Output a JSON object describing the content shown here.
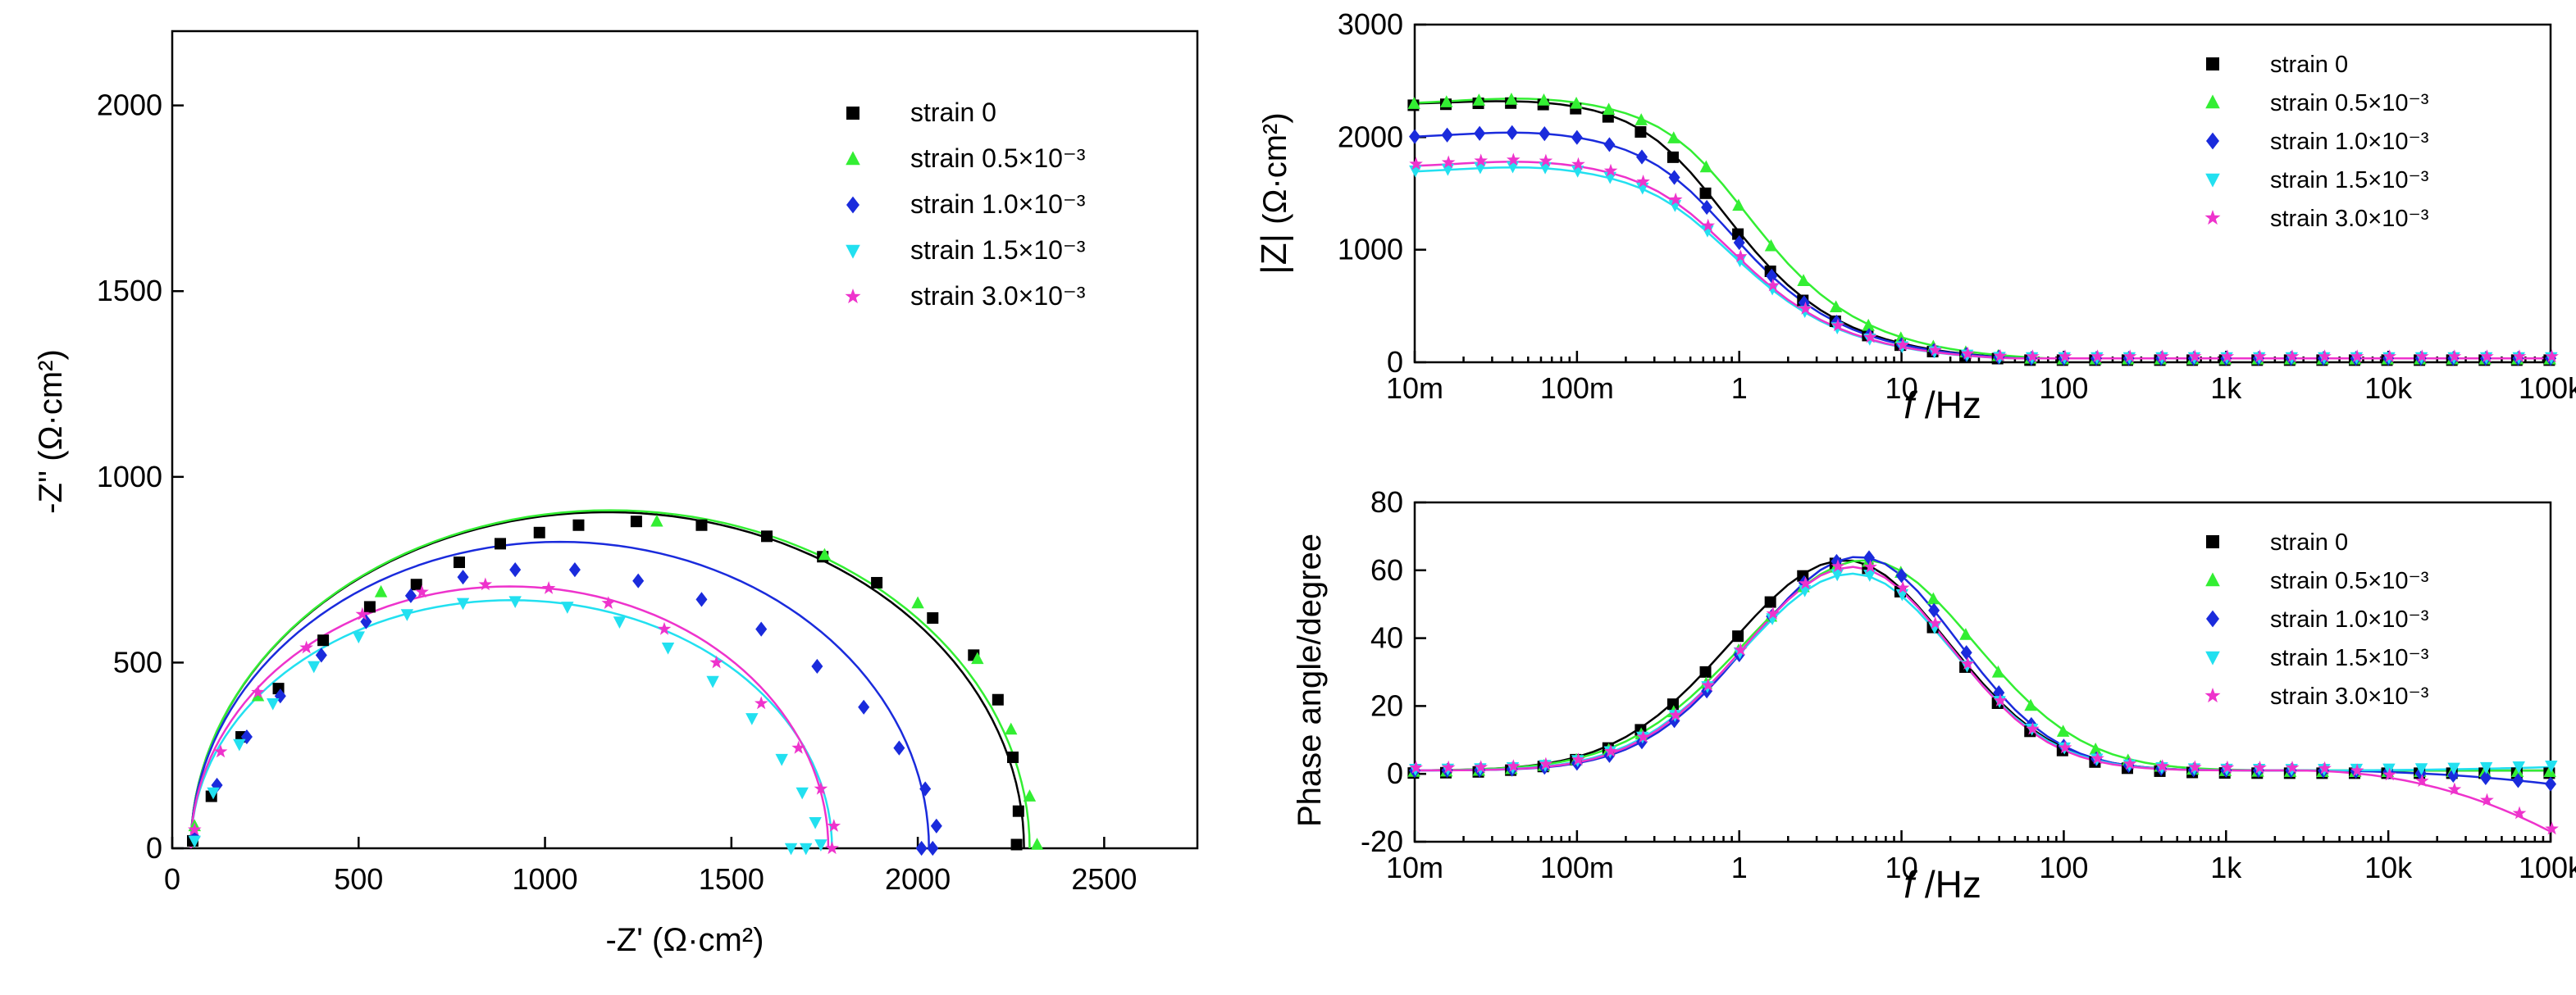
{
  "chart_data": [
    {
      "id": "nyquist",
      "type": "scatter",
      "xlabel": "-Z' (Ω·cm²)",
      "ylabel": "-Z'' (Ω·cm²)",
      "xlim": [
        0,
        2750
      ],
      "ylim": [
        0,
        2200
      ],
      "xticks": [
        "0",
        "500",
        "1000",
        "1500",
        "2000",
        "2500"
      ],
      "yticks": [
        "0",
        "500",
        "1000",
        "1500",
        "2000"
      ],
      "legend": "top-right",
      "series": [
        {
          "name": "strain 0",
          "color": "#000000",
          "marker": "square",
          "x": [
            55,
            105,
            185,
            285,
            405,
            530,
            655,
            770,
            880,
            985,
            1090,
            1245,
            1420,
            1595,
            1745,
            1890,
            2040,
            2150,
            2215,
            2255,
            2270,
            2265
          ],
          "y": [
            20,
            140,
            300,
            430,
            560,
            650,
            710,
            770,
            820,
            850,
            870,
            880,
            870,
            840,
            785,
            715,
            620,
            520,
            400,
            245,
            100,
            10
          ],
          "fit_R": 2240,
          "fit_Ymax": 905,
          "fit_xmax": 2285
        },
        {
          "name": "strain 0.5×10⁻³",
          "color": "#33ee33",
          "marker": "triangle",
          "x": [
            60,
            230,
            560,
            1300,
            1750,
            2000,
            2160,
            2250,
            2300,
            2320
          ],
          "y": [
            60,
            410,
            690,
            880,
            790,
            660,
            510,
            320,
            140,
            10
          ],
          "fit_R": 2250,
          "fit_Ymax": 910,
          "fit_xmax": 2300
        },
        {
          "name": "strain 1.0×10⁻³",
          "color": "#1a2bdc",
          "marker": "diamond",
          "x": [
            60,
            120,
            200,
            290,
            400,
            520,
            640,
            780,
            920,
            1080,
            1250,
            1420,
            1580,
            1730,
            1855,
            1950,
            2020,
            2050,
            2040,
            2010
          ],
          "y": [
            30,
            170,
            300,
            410,
            520,
            610,
            680,
            730,
            750,
            750,
            720,
            670,
            590,
            490,
            380,
            270,
            160,
            60,
            0,
            0
          ],
          "fit_R": 1980,
          "fit_Ymax": 825,
          "fit_xmax": 2030
        },
        {
          "name": "strain 1.5×10⁻³",
          "color": "#22e0f0",
          "marker": "tri-down",
          "x": [
            60,
            110,
            180,
            270,
            380,
            500,
            630,
            780,
            920,
            1060,
            1200,
            1330,
            1450,
            1555,
            1635,
            1690,
            1725,
            1740,
            1700,
            1660
          ],
          "y": [
            20,
            150,
            280,
            390,
            490,
            570,
            630,
            660,
            665,
            650,
            610,
            540,
            450,
            350,
            240,
            150,
            70,
            10,
            0,
            0
          ],
          "fit_R": 1730,
          "fit_Ymax": 668,
          "fit_xmax": 1770
        },
        {
          "name": "strain 3.0×10⁻³",
          "color": "#ee33cc",
          "marker": "star",
          "x": [
            60,
            130,
            230,
            360,
            510,
            670,
            840,
            1010,
            1170,
            1320,
            1460,
            1580,
            1680,
            1740,
            1775,
            1770
          ],
          "y": [
            50,
            260,
            420,
            540,
            630,
            690,
            710,
            700,
            660,
            590,
            500,
            390,
            270,
            160,
            60,
            0
          ],
          "fit_R": 1720,
          "fit_Ymax": 705,
          "fit_xmax": 1760
        }
      ]
    },
    {
      "id": "bode-mod",
      "type": "scatter",
      "xlabel_italic": "f",
      "xlabel_rest": " /Hz",
      "ylabel_pre": "|Z|",
      "ylabel_unit": " (Ω·cm²)",
      "xscale": "log",
      "xlim": [
        0.01,
        100000
      ],
      "ylim": [
        0,
        3000
      ],
      "xticks": [
        "10m",
        "100m",
        "1",
        "10",
        "100",
        "1k",
        "10k",
        "100k"
      ],
      "yticks": [
        "0",
        "1000",
        "2000",
        "3000"
      ],
      "legend": "top-right",
      "series": [
        {
          "name": "strain 0",
          "color": "#000000",
          "marker": "square",
          "plateau": 2290,
          "hump": 40,
          "fc": 0.55,
          "floor": 35
        },
        {
          "name": "strain 0.5×10⁻³",
          "color": "#33ee33",
          "marker": "triangle",
          "plateau": 2290,
          "hump": 60,
          "fc": 0.75,
          "floor": 35
        },
        {
          "name": "strain 1.0×10⁻³",
          "color": "#1a2bdc",
          "marker": "diamond",
          "plateau": 1990,
          "hump": 60,
          "fc": 0.6,
          "floor": 35
        },
        {
          "name": "strain 1.5×10⁻³",
          "color": "#22e0f0",
          "marker": "tri-down",
          "plateau": 1680,
          "hump": 60,
          "fc": 0.6,
          "floor": 35
        },
        {
          "name": "strain 3.0×10⁻³",
          "color": "#ee33cc",
          "marker": "star",
          "plateau": 1730,
          "hump": 60,
          "fc": 0.6,
          "floor": 35
        }
      ]
    },
    {
      "id": "bode-phase",
      "type": "scatter",
      "xlabel_italic": "f",
      "xlabel_rest": " /Hz",
      "ylabel": "Phase angle/degree",
      "xscale": "log",
      "xlim": [
        0.01,
        100000
      ],
      "ylim": [
        -20,
        80
      ],
      "xticks": [
        "10m",
        "100m",
        "1",
        "10",
        "100",
        "1k",
        "10k",
        "100k"
      ],
      "yticks": [
        "-20",
        "0",
        "20",
        "40",
        "60",
        "80"
      ],
      "legend": "top-right",
      "series": [
        {
          "name": "strain 0",
          "color": "#000000",
          "marker": "square",
          "peak": 62,
          "fpeak": 4.5,
          "width": 0.95,
          "tail": 0
        },
        {
          "name": "strain 0.5×10⁻³",
          "color": "#33ee33",
          "marker": "triangle",
          "peak": 62,
          "fpeak": 6,
          "width": 1.0,
          "tail": 0
        },
        {
          "name": "strain 1.0×10⁻³",
          "color": "#1a2bdc",
          "marker": "diamond",
          "peak": 63,
          "fpeak": 5.5,
          "width": 0.9,
          "tail": -4
        },
        {
          "name": "strain 1.5×10⁻³",
          "color": "#22e0f0",
          "marker": "tri-down",
          "peak": 58,
          "fpeak": 5,
          "width": 0.92,
          "tail": 1
        },
        {
          "name": "strain 3.0×10⁻³",
          "color": "#ee33cc",
          "marker": "star",
          "peak": 60,
          "fpeak": 5,
          "width": 0.9,
          "tail": -18
        }
      ]
    }
  ]
}
